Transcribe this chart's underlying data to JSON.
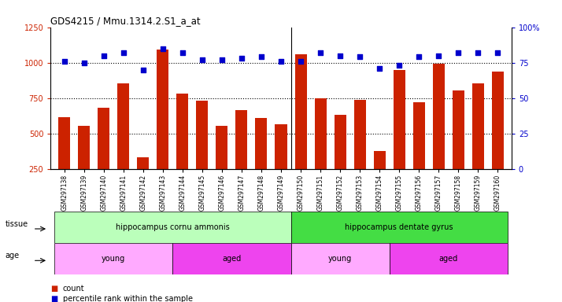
{
  "title": "GDS4215 / Mmu.1314.2.S1_a_at",
  "samples": [
    "GSM297138",
    "GSM297139",
    "GSM297140",
    "GSM297141",
    "GSM297142",
    "GSM297143",
    "GSM297144",
    "GSM297145",
    "GSM297146",
    "GSM297147",
    "GSM297148",
    "GSM297149",
    "GSM297150",
    "GSM297151",
    "GSM297152",
    "GSM297153",
    "GSM297154",
    "GSM297155",
    "GSM297156",
    "GSM297157",
    "GSM297158",
    "GSM297159",
    "GSM297160"
  ],
  "counts": [
    615,
    555,
    685,
    855,
    335,
    1090,
    780,
    730,
    555,
    665,
    610,
    565,
    1060,
    750,
    635,
    740,
    375,
    950,
    720,
    990,
    805,
    855,
    940
  ],
  "percentiles": [
    76,
    75,
    80,
    82,
    70,
    85,
    82,
    77,
    77,
    78,
    79,
    76,
    76,
    82,
    80,
    79,
    71,
    73,
    79,
    80,
    82,
    82,
    82
  ],
  "ylim_left": [
    250,
    1250
  ],
  "ylim_right": [
    0,
    100
  ],
  "yticks_left": [
    250,
    500,
    750,
    1000,
    1250
  ],
  "yticks_right": [
    0,
    25,
    50,
    75,
    100
  ],
  "bar_color": "#cc2200",
  "dot_color": "#0000cc",
  "tissue_groups": [
    {
      "label": "hippocampus cornu ammonis",
      "start": 0,
      "end": 12,
      "color": "#bbffbb"
    },
    {
      "label": "hippocampus dentate gyrus",
      "start": 12,
      "end": 23,
      "color": "#44dd44"
    }
  ],
  "age_groups": [
    {
      "label": "young",
      "start": 0,
      "end": 6,
      "color": "#ffaaff"
    },
    {
      "label": "aged",
      "start": 6,
      "end": 12,
      "color": "#ee44ee"
    },
    {
      "label": "young",
      "start": 12,
      "end": 17,
      "color": "#ffaaff"
    },
    {
      "label": "aged",
      "start": 17,
      "end": 23,
      "color": "#ee44ee"
    }
  ],
  "legend_count_color": "#cc2200",
  "legend_dot_color": "#0000cc",
  "axis_label_color_left": "#cc2200",
  "axis_label_color_right": "#0000cc",
  "tick_label_color": "#cc2200"
}
